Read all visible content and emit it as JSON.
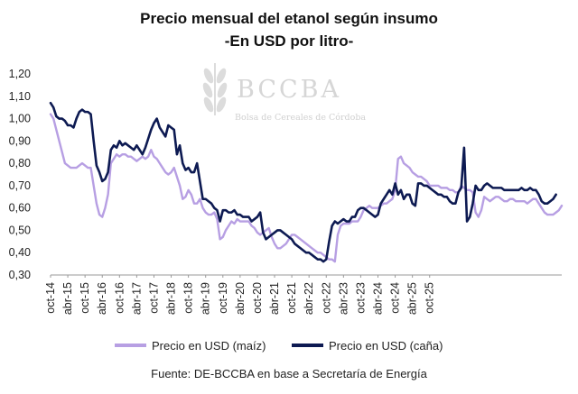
{
  "chart_data": {
    "type": "line",
    "title": "Precio mensual del etanol según insumo",
    "subtitle": "-En USD por litro-",
    "xlabel": "",
    "ylabel": "",
    "ylim": [
      0.3,
      1.2
    ],
    "y_ticks": [
      "0,30",
      "0,40",
      "0,50",
      "0,60",
      "0,70",
      "0,80",
      "0,90",
      "1,00",
      "1,10",
      "1,20"
    ],
    "x_tick_labels": [
      "oct-14",
      "abr-15",
      "oct-15",
      "abr-16",
      "oct-16",
      "abr-17",
      "oct-17",
      "abr-18",
      "oct-18",
      "abr-19",
      "oct-19",
      "abr-20",
      "oct-20",
      "abr-21",
      "oct-21",
      "abr-22",
      "oct-22",
      "abr-23",
      "oct-23",
      "abr-24",
      "oct-24",
      "abr-25",
      "oct-25"
    ],
    "x_start": "oct-14",
    "grid": false,
    "legend_position": "bottom",
    "series": [
      {
        "name": "Precio en USD (maíz)",
        "color": "#b79fe3",
        "values": [
          1.02,
          1.0,
          0.95,
          0.9,
          0.85,
          0.8,
          0.79,
          0.78,
          0.78,
          0.78,
          0.79,
          0.8,
          0.79,
          0.78,
          0.78,
          0.7,
          0.62,
          0.57,
          0.56,
          0.6,
          0.66,
          0.8,
          0.82,
          0.84,
          0.83,
          0.84,
          0.84,
          0.83,
          0.83,
          0.82,
          0.81,
          0.82,
          0.83,
          0.82,
          0.83,
          0.86,
          0.83,
          0.82,
          0.8,
          0.78,
          0.76,
          0.75,
          0.76,
          0.78,
          0.74,
          0.7,
          0.64,
          0.65,
          0.68,
          0.66,
          0.62,
          0.62,
          0.64,
          0.6,
          0.58,
          0.57,
          0.57,
          0.58,
          0.55,
          0.46,
          0.47,
          0.5,
          0.52,
          0.54,
          0.53,
          0.55,
          0.54,
          0.54,
          0.54,
          0.54,
          0.52,
          0.51,
          0.49,
          0.48,
          0.49,
          0.5,
          0.51,
          0.47,
          0.44,
          0.42,
          0.42,
          0.43,
          0.44,
          0.46,
          0.48,
          0.48,
          0.47,
          0.46,
          0.45,
          0.44,
          0.43,
          0.42,
          0.41,
          0.4,
          0.4,
          0.39,
          0.38,
          0.37,
          0.37,
          0.36,
          0.48,
          0.52,
          0.53,
          0.53,
          0.53,
          0.54,
          0.54,
          0.54,
          0.56,
          0.59,
          0.6,
          0.61,
          0.6,
          0.6,
          0.6,
          0.61,
          0.62,
          0.62,
          0.63,
          0.64,
          0.68,
          0.82,
          0.83,
          0.8,
          0.79,
          0.78,
          0.76,
          0.75,
          0.74,
          0.74,
          0.73,
          0.72,
          0.7,
          0.7,
          0.7,
          0.7,
          0.69,
          0.69,
          0.69,
          0.68,
          0.68,
          0.67,
          0.67,
          0.7,
          0.69,
          0.68,
          0.68,
          0.67,
          0.58,
          0.56,
          0.59,
          0.65,
          0.64,
          0.63,
          0.64,
          0.65,
          0.65,
          0.64,
          0.63,
          0.63,
          0.64,
          0.64,
          0.63,
          0.63,
          0.63,
          0.63,
          0.62,
          0.63,
          0.64,
          0.64,
          0.62,
          0.6,
          0.58,
          0.57,
          0.57,
          0.57,
          0.58,
          0.59,
          0.61
        ]
      },
      {
        "name": "Precio en USD (caña)",
        "color": "#0d1a52",
        "values": [
          1.07,
          1.05,
          1.01,
          1.0,
          1.0,
          0.99,
          0.97,
          0.97,
          0.96,
          1.0,
          1.03,
          1.04,
          1.03,
          1.03,
          1.02,
          0.9,
          0.79,
          0.76,
          0.72,
          0.73,
          0.76,
          0.86,
          0.88,
          0.87,
          0.9,
          0.88,
          0.89,
          0.88,
          0.87,
          0.86,
          0.88,
          0.86,
          0.84,
          0.87,
          0.91,
          0.95,
          0.98,
          1.0,
          0.96,
          0.94,
          0.92,
          0.97,
          0.96,
          0.95,
          0.84,
          0.88,
          0.8,
          0.77,
          0.78,
          0.76,
          0.76,
          0.8,
          0.72,
          0.64,
          0.64,
          0.63,
          0.62,
          0.6,
          0.59,
          0.54,
          0.59,
          0.59,
          0.58,
          0.58,
          0.59,
          0.57,
          0.57,
          0.56,
          0.56,
          0.56,
          0.54,
          0.55,
          0.56,
          0.58,
          0.49,
          0.46,
          0.47,
          0.48,
          0.49,
          0.5,
          0.5,
          0.49,
          0.48,
          0.47,
          0.46,
          0.44,
          0.43,
          0.42,
          0.41,
          0.4,
          0.4,
          0.39,
          0.38,
          0.37,
          0.37,
          0.36,
          0.37,
          0.45,
          0.52,
          0.54,
          0.53,
          0.54,
          0.55,
          0.54,
          0.54,
          0.56,
          0.56,
          0.59,
          0.6,
          0.6,
          0.59,
          0.58,
          0.57,
          0.56,
          0.57,
          0.62,
          0.64,
          0.66,
          0.68,
          0.66,
          0.71,
          0.66,
          0.68,
          0.64,
          0.66,
          0.66,
          0.62,
          0.61,
          0.71,
          0.71,
          0.7,
          0.7,
          0.69,
          0.68,
          0.67,
          0.66,
          0.66,
          0.65,
          0.65,
          0.63,
          0.62,
          0.62,
          0.67,
          0.69,
          0.87,
          0.54,
          0.56,
          0.62,
          0.7,
          0.68,
          0.68,
          0.7,
          0.71,
          0.7,
          0.69,
          0.69,
          0.69,
          0.69,
          0.68,
          0.68,
          0.68,
          0.68,
          0.68,
          0.68,
          0.69,
          0.68,
          0.68,
          0.69,
          0.68,
          0.68,
          0.66,
          0.63,
          0.62,
          0.62,
          0.63,
          0.64,
          0.66
        ]
      }
    ],
    "source": "Fuente: DE-BCCBA en base a Secretaría de Energía"
  },
  "watermark": {
    "name": "BCCBA",
    "subtitle": "Bolsa de Cereales de Córdoba"
  }
}
